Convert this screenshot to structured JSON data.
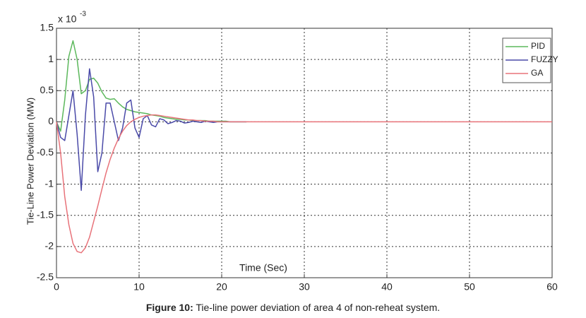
{
  "chart_data": {
    "type": "line",
    "xlabel": "Time (Sec)",
    "ylabel": "Tie-Line Power Deviation (MW)",
    "y_multiplier": "x 10",
    "y_exponent": "-3",
    "caption_label": "Figure 10:",
    "caption": "Tie-line power deviation of area 4 of non-reheat system.",
    "xlim": [
      0,
      60
    ],
    "xticks": [
      0,
      10,
      20,
      30,
      40,
      50,
      60
    ],
    "ylim": [
      -2.5,
      1.5
    ],
    "yticks": [
      -2.5,
      -2,
      -1.5,
      -1,
      -0.5,
      0,
      0.5,
      1,
      1.5
    ],
    "grid": true,
    "legend": "upper right",
    "x": [
      0,
      0.5,
      1,
      1.5,
      2,
      2.5,
      3,
      3.5,
      4,
      4.5,
      5,
      5.5,
      6,
      6.5,
      7,
      7.5,
      8,
      8.5,
      9,
      9.5,
      10,
      10.5,
      11,
      11.5,
      12,
      12.5,
      13,
      13.5,
      14,
      14.5,
      15,
      15.5,
      16,
      16.5,
      17,
      17.5,
      18,
      18.5,
      19,
      19.5,
      20,
      20.5,
      21,
      21.5,
      22,
      22.5,
      23,
      23.5,
      24,
      30,
      40,
      50,
      60
    ],
    "series": [
      {
        "name": "PID",
        "color": "#5cb85c",
        "values": [
          0,
          -0.15,
          0.35,
          1.05,
          1.3,
          1.0,
          0.45,
          0.5,
          0.68,
          0.7,
          0.62,
          0.48,
          0.38,
          0.36,
          0.37,
          0.3,
          0.24,
          0.2,
          0.18,
          0.16,
          0.15,
          0.14,
          0.13,
          0.11,
          0.1,
          0.09,
          0.07,
          0.06,
          0.05,
          0.04,
          0.04,
          0.03,
          0.03,
          0.02,
          0.02,
          0.02,
          0.02,
          0.01,
          0.01,
          0.01,
          0.01,
          0.01,
          0,
          0,
          0,
          0,
          0,
          null,
          null,
          null,
          null,
          null,
          null
        ]
      },
      {
        "name": "FUZZY",
        "color": "#4a4aa8",
        "values": [
          0,
          -0.25,
          -0.3,
          0.1,
          0.5,
          -0.2,
          -1.1,
          0.1,
          0.85,
          0.4,
          -0.8,
          -0.5,
          0.3,
          0.3,
          0,
          -0.3,
          -0.1,
          0.3,
          0.35,
          -0.1,
          -0.25,
          0.05,
          0.1,
          -0.05,
          -0.08,
          0.05,
          0.03,
          -0.03,
          -0.01,
          0.02,
          0.01,
          -0.02,
          -0.01,
          0.01,
          0,
          -0.01,
          0.01,
          0,
          -0.01,
          0,
          0,
          0,
          0,
          0,
          0,
          0,
          0,
          null,
          null,
          null,
          null,
          null,
          null
        ]
      },
      {
        "name": "GA",
        "color": "#e8737a",
        "values": [
          0,
          -0.5,
          -1.2,
          -1.65,
          -1.95,
          -2.08,
          -2.1,
          -2.02,
          -1.85,
          -1.6,
          -1.35,
          -1.08,
          -0.82,
          -0.6,
          -0.42,
          -0.27,
          -0.15,
          -0.06,
          0,
          0.04,
          0.07,
          0.09,
          0.1,
          0.11,
          0.11,
          0.1,
          0.09,
          0.08,
          0.07,
          0.06,
          0.05,
          0.04,
          0.03,
          0.03,
          0.02,
          0.02,
          0.01,
          0.01,
          0.01,
          0,
          0,
          0,
          0,
          0,
          0,
          0,
          0,
          0,
          0,
          0,
          0,
          0,
          0
        ]
      }
    ]
  }
}
